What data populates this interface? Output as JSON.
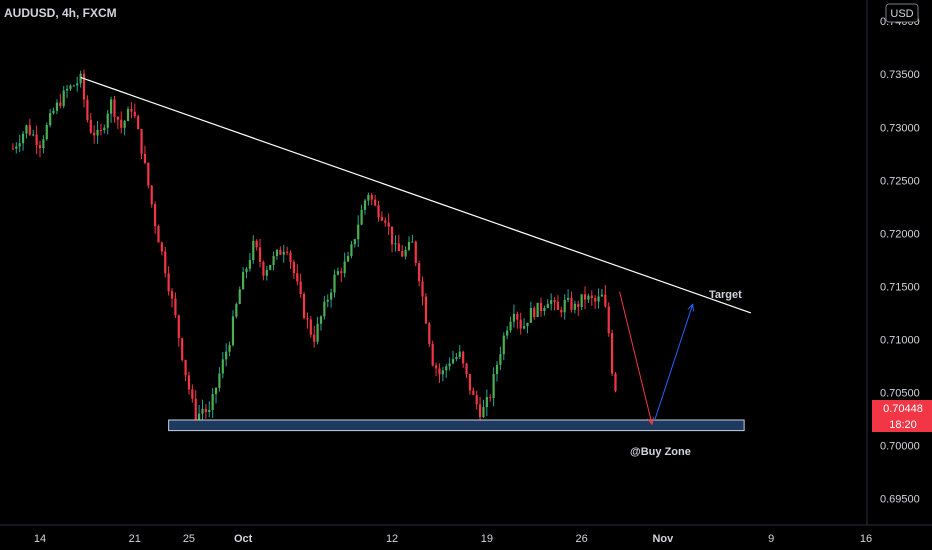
{
  "header": {
    "symbol_line": "AUDUSD, 4h, FXCM"
  },
  "currency_button": {
    "label": "USD"
  },
  "price_badge": {
    "value": "0.70448",
    "countdown": "18:20"
  },
  "annotations": {
    "target": "Target",
    "buy_zone": "@Buy Zone"
  },
  "colors": {
    "background": "#000000",
    "up": "#26a69a",
    "up_body": "#4caf50",
    "down": "#f23645",
    "trendline": "#ffffff",
    "zone_fill": "#1e3a5f",
    "zone_border": "#c8d0e0",
    "arrow_down": "#f23645",
    "arrow_up": "#2962ff",
    "axis_text": "#d1d4dc"
  },
  "chart_data": {
    "type": "candlestick",
    "interval": "4h",
    "y_axis": {
      "side": "right",
      "min": 0.6925,
      "max": 0.742,
      "tick_labels": [
        "0.74000",
        "0.73500",
        "0.73000",
        "0.72500",
        "0.72000",
        "0.71500",
        "0.71000",
        "0.70500",
        "0.70000",
        "0.69500"
      ]
    },
    "x_axis": {
      "tick_labels": [
        {
          "label": "14",
          "pos": 14.0
        },
        {
          "label": "21",
          "pos": 21.0
        },
        {
          "label": "25",
          "pos": 25.0
        },
        {
          "label": "Oct",
          "pos": 29.0
        },
        {
          "label": "12",
          "pos": 40.0
        },
        {
          "label": "19",
          "pos": 47.0
        },
        {
          "label": "26",
          "pos": 54.0
        },
        {
          "label": "Nov",
          "pos": 60.0
        },
        {
          "label": "9",
          "pos": 68.0
        },
        {
          "label": "16",
          "pos": 75.0
        }
      ]
    },
    "price_path": [
      [
        12.0,
        0.728
      ],
      [
        13.0,
        0.73
      ],
      [
        14.0,
        0.7285
      ],
      [
        15.0,
        0.7315
      ],
      [
        16.0,
        0.7335
      ],
      [
        17.0,
        0.7345
      ],
      [
        17.6,
        0.73
      ],
      [
        18.4,
        0.729
      ],
      [
        19.2,
        0.7325
      ],
      [
        20.0,
        0.73
      ],
      [
        20.8,
        0.732
      ],
      [
        21.5,
        0.728
      ],
      [
        22.5,
        0.721
      ],
      [
        23.2,
        0.717
      ],
      [
        24.0,
        0.712
      ],
      [
        24.8,
        0.7065
      ],
      [
        25.5,
        0.7025
      ],
      [
        26.0,
        0.7035
      ],
      [
        26.5,
        0.703
      ],
      [
        27.2,
        0.7065
      ],
      [
        28.0,
        0.71
      ],
      [
        28.8,
        0.715
      ],
      [
        29.8,
        0.719
      ],
      [
        30.5,
        0.7165
      ],
      [
        31.2,
        0.7175
      ],
      [
        32.2,
        0.719
      ],
      [
        32.8,
        0.716
      ],
      [
        33.5,
        0.7125
      ],
      [
        34.2,
        0.71
      ],
      [
        35.0,
        0.713
      ],
      [
        35.8,
        0.716
      ],
      [
        36.8,
        0.7175
      ],
      [
        37.5,
        0.721
      ],
      [
        38.2,
        0.724
      ],
      [
        38.7,
        0.7225
      ],
      [
        39.5,
        0.7215
      ],
      [
        40.2,
        0.7185
      ],
      [
        40.8,
        0.718
      ],
      [
        41.5,
        0.719
      ],
      [
        42.0,
        0.716
      ],
      [
        42.5,
        0.712
      ],
      [
        43.0,
        0.708
      ],
      [
        43.6,
        0.7065
      ],
      [
        44.2,
        0.708
      ],
      [
        45.0,
        0.7085
      ],
      [
        45.6,
        0.706
      ],
      [
        46.0,
        0.7045
      ],
      [
        46.6,
        0.703
      ],
      [
        47.2,
        0.7045
      ],
      [
        47.8,
        0.708
      ],
      [
        48.4,
        0.711
      ],
      [
        49.0,
        0.713
      ],
      [
        49.6,
        0.711
      ],
      [
        50.2,
        0.7125
      ],
      [
        51.0,
        0.713
      ],
      [
        51.6,
        0.714
      ],
      [
        52.2,
        0.7125
      ],
      [
        52.8,
        0.7135
      ],
      [
        53.5,
        0.713
      ],
      [
        54.2,
        0.714
      ],
      [
        55.0,
        0.7135
      ],
      [
        55.5,
        0.714
      ],
      [
        55.9,
        0.712
      ],
      [
        56.3,
        0.7065
      ],
      [
        56.7,
        0.7044
      ]
    ],
    "trendline": {
      "start": [
        17.0,
        0.7347
      ],
      "end": [
        66.5,
        0.7125
      ]
    },
    "buy_zone": {
      "x_start": 23.5,
      "x_end": 66.0,
      "y_low": 0.7014,
      "y_high": 0.7024
    },
    "projection_arrows": [
      {
        "from": [
          56.8,
          0.7145
        ],
        "to": [
          59.2,
          0.702
        ]
      },
      {
        "from": [
          59.4,
          0.7024
        ],
        "to": [
          62.2,
          0.7133
        ]
      }
    ],
    "last_price": 0.70448
  }
}
